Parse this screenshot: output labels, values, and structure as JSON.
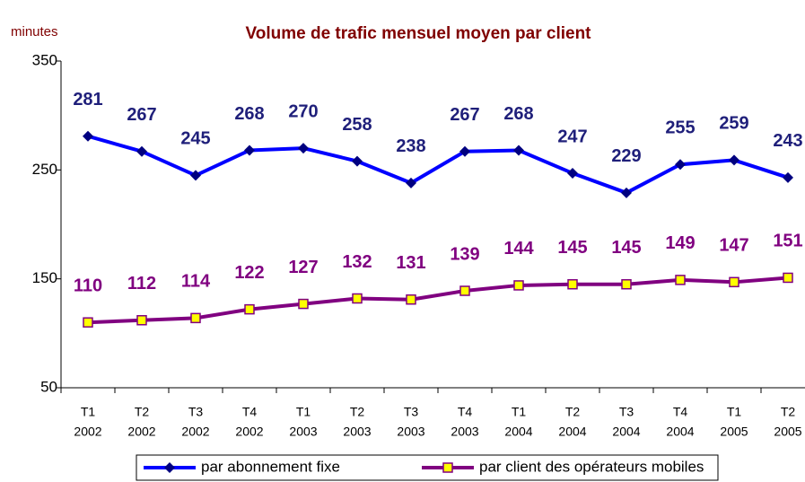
{
  "chart_data": {
    "type": "line",
    "title": "Volume de trafic mensuel moyen par client",
    "y_label": "minutes",
    "categories": [
      [
        "T1",
        "2002"
      ],
      [
        "T2",
        "2002"
      ],
      [
        "T3",
        "2002"
      ],
      [
        "T4",
        "2002"
      ],
      [
        "T1",
        "2003"
      ],
      [
        "T2",
        "2003"
      ],
      [
        "T3",
        "2003"
      ],
      [
        "T4",
        "2003"
      ],
      [
        "T1",
        "2004"
      ],
      [
        "T2",
        "2004"
      ],
      [
        "T3",
        "2004"
      ],
      [
        "T4",
        "2004"
      ],
      [
        "T1",
        "2005"
      ],
      [
        "T2",
        "2005"
      ]
    ],
    "series": [
      {
        "name": "par abonnement fixe",
        "color": "#0000ff",
        "marker_color": "#000080",
        "label_color": "#1f1f7a",
        "values": [
          281,
          267,
          245,
          268,
          270,
          258,
          238,
          267,
          268,
          247,
          229,
          255,
          259,
          243
        ]
      },
      {
        "name": "par client des opérateurs mobiles",
        "color": "#800080",
        "marker_color": "#ffff00",
        "label_color": "#800080",
        "values": [
          110,
          112,
          114,
          122,
          127,
          132,
          131,
          139,
          144,
          145,
          145,
          149,
          147,
          151
        ]
      }
    ],
    "ylim": [
      50,
      350
    ],
    "yticks": [
      50,
      150,
      250,
      350
    ],
    "grid": false
  }
}
